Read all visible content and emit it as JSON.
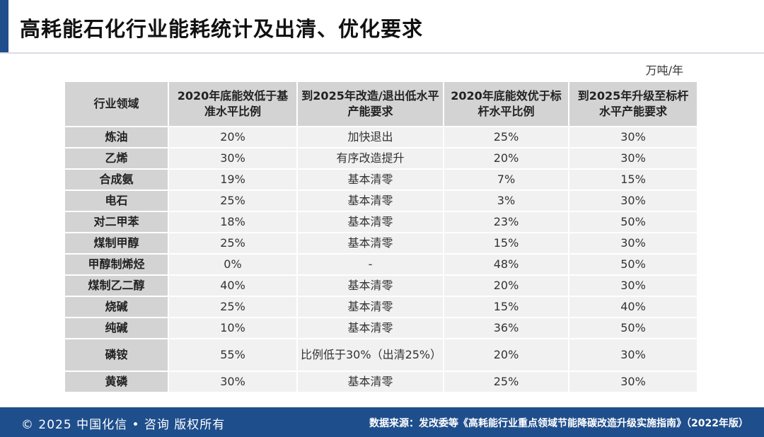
{
  "page": {
    "title": "高耗能石化行业能耗统计及出清、优化要求",
    "unit": "万吨/年",
    "accent_color": "#1f4e8c"
  },
  "table": {
    "headers": [
      "行业领域",
      "2020年底能效低于基准水平比例",
      "到2025年改造/退出低水平产能要求",
      "2020年底能效优于标杆水平比例",
      "到2025年升级至标杆水平产能要求"
    ],
    "rows": [
      [
        "炼油",
        "20%",
        "加快退出",
        "25%",
        "30%"
      ],
      [
        "乙烯",
        "30%",
        "有序改造提升",
        "20%",
        "30%"
      ],
      [
        "合成氨",
        "19%",
        "基本清零",
        "7%",
        "15%"
      ],
      [
        "电石",
        "25%",
        "基本清零",
        "3%",
        "30%"
      ],
      [
        "对二甲苯",
        "18%",
        "基本清零",
        "23%",
        "50%"
      ],
      [
        "煤制甲醇",
        "25%",
        "基本清零",
        "15%",
        "30%"
      ],
      [
        "甲醇制烯烃",
        "0%",
        "-",
        "48%",
        "50%"
      ],
      [
        "煤制乙二醇",
        "40%",
        "基本清零",
        "20%",
        "30%"
      ],
      [
        "烧碱",
        "25%",
        "基本清零",
        "15%",
        "40%"
      ],
      [
        "纯碱",
        "10%",
        "基本清零",
        "36%",
        "50%"
      ],
      [
        "磷铵",
        "55%",
        "比例低于30%（出清25%）",
        "20%",
        "30%"
      ],
      [
        "黄磷",
        "30%",
        "基本清零",
        "25%",
        "30%"
      ]
    ]
  },
  "footer": {
    "copyright": "© 2025 中国化信 • 咨询 版权所有",
    "source": "数据来源：发改委等《高耗能行业重点领域节能降碳改造升级实施指南》（2022年版）"
  }
}
